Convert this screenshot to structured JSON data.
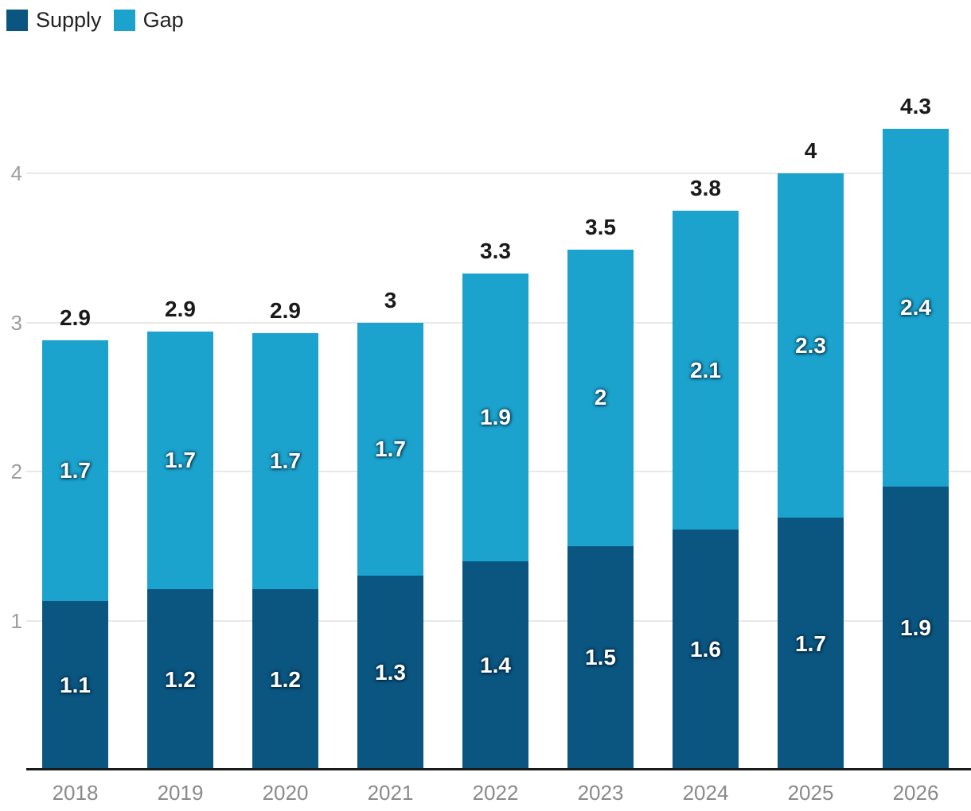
{
  "chart_data": {
    "type": "bar",
    "stacked": true,
    "title": "",
    "xlabel": "",
    "ylabel": "",
    "grid": true,
    "legend_position": "top-left",
    "categories": [
      "2018",
      "2019",
      "2020",
      "2021",
      "2022",
      "2023",
      "2024",
      "2025",
      "2026"
    ],
    "series": [
      {
        "name": "Supply",
        "color": "#0b5681",
        "values": [
          1.1,
          1.2,
          1.2,
          1.3,
          1.4,
          1.5,
          1.6,
          1.7,
          1.9
        ],
        "labels": [
          "1.1",
          "1.2",
          "1.2",
          "1.3",
          "1.4",
          "1.5",
          "1.6",
          "1.7",
          "1.9"
        ]
      },
      {
        "name": "Gap",
        "color": "#1ba3cd",
        "values": [
          1.7,
          1.7,
          1.7,
          1.7,
          1.9,
          2,
          2.1,
          2.3,
          2.4
        ],
        "labels": [
          "1.7",
          "1.7",
          "1.7",
          "1.7",
          "1.9",
          "2",
          "2.1",
          "2.3",
          "2.4"
        ]
      }
    ],
    "totals": [
      2.9,
      2.9,
      2.9,
      3,
      3.3,
      3.5,
      3.8,
      4,
      4.3
    ],
    "total_labels": [
      "2.9",
      "2.9",
      "2.9",
      "3",
      "3.3",
      "3.5",
      "3.8",
      "4",
      "4.3"
    ],
    "render_heights_units": {
      "supply": [
        1.13,
        1.21,
        1.21,
        1.3,
        1.4,
        1.5,
        1.61,
        1.69,
        1.9
      ],
      "total": [
        2.88,
        2.94,
        2.93,
        3.0,
        3.33,
        3.49,
        3.75,
        4.0,
        4.3
      ]
    },
    "y_ticks": [
      "1",
      "2",
      "3",
      "4"
    ],
    "ylim": [
      0,
      4.6
    ]
  },
  "colors": {
    "supply": "#0b5681",
    "gap": "#1ba3cd",
    "grid_line": "#e8e8e8",
    "axis_line": "#1a1a1a",
    "y_tick_text": "#9e9e9e",
    "x_tick_text": "#8a8a8a",
    "total_label_text": "#1a1a1a",
    "segment_label_text": "#ffffff",
    "legend_text": "#212121",
    "background": "#ffffff"
  }
}
